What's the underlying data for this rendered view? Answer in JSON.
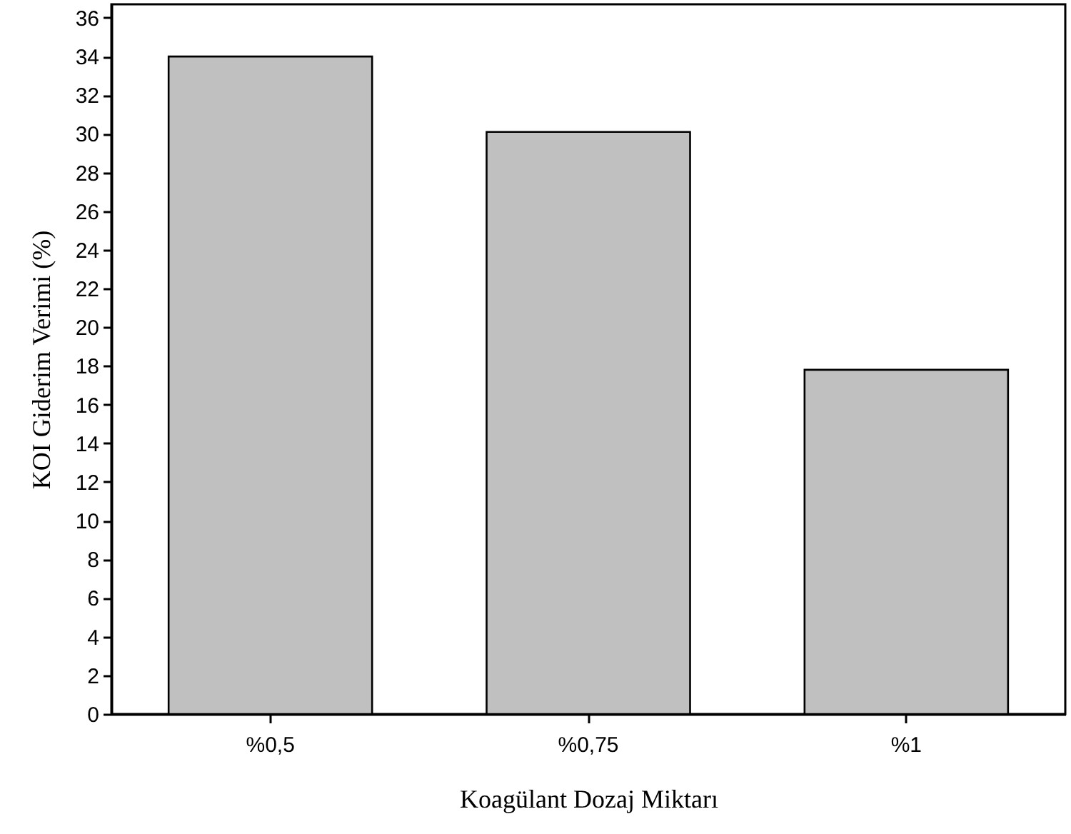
{
  "chart_data": {
    "type": "bar",
    "xlabel": "Koagülant Dozaj Miktarı",
    "ylabel": "KOI Giderim Verimi (%)",
    "categories": [
      "%0,5",
      "%0,75",
      "%1"
    ],
    "values": [
      34.0,
      30.1,
      17.8
    ],
    "color": "#c0c0c0",
    "ylim": [
      0,
      36.7
    ],
    "yticks": [
      0,
      2,
      4,
      6,
      8,
      10,
      12,
      14,
      16,
      18,
      20,
      22,
      24,
      26,
      28,
      30,
      32,
      34,
      36
    ],
    "grid": false
  }
}
